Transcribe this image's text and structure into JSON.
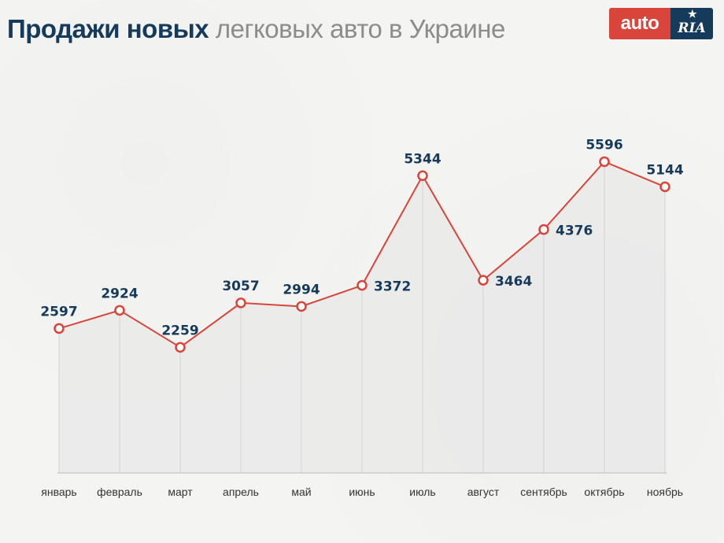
{
  "header": {
    "title_bold": "Продажи новых",
    "title_light": "легковых авто в Украине"
  },
  "logo": {
    "left_text": "auto",
    "right_text": "RIA",
    "colors": {
      "left": "#d9453a",
      "right": "#163a5a"
    }
  },
  "colors": {
    "line": "#d9453a",
    "marker_fill": "#ffffff",
    "area": "#e9e9e9",
    "labels": "#163a5a"
  },
  "chart_data": {
    "type": "area",
    "categories": [
      "январь",
      "февраль",
      "март",
      "апрель",
      "май",
      "июнь",
      "июль",
      "август",
      "сентябрь",
      "октябрь",
      "ноябрь"
    ],
    "values": [
      2597,
      2924,
      2259,
      3057,
      2994,
      3372,
      5344,
      3464,
      4376,
      5596,
      5144
    ],
    "title": "Продажи новых легковых авто в Украине",
    "xlabel": "",
    "ylabel": "",
    "ylim": [
      0,
      6000
    ],
    "grid": "vertical drop lines only",
    "legend": "none",
    "label_sides": [
      "left",
      "left",
      "left",
      "left",
      "left",
      "right",
      "left",
      "right",
      "right",
      "left",
      "left"
    ]
  }
}
